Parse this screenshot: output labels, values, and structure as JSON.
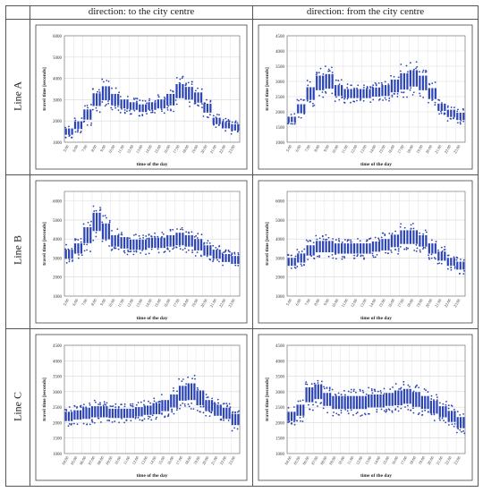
{
  "header": {
    "col1": "direction: to the city centre",
    "col2": "direction: from the city centre"
  },
  "rows": [
    "Line A",
    "Line B",
    "Line C"
  ],
  "chart_data": [
    {
      "type": "scatter",
      "line": "Line A",
      "direction": "to the city centre",
      "xlabel": "time of the day",
      "ylabel": "travel time [seconds]",
      "ylim": [
        1000,
        6000
      ],
      "yticks": [
        1000,
        2000,
        3000,
        4000,
        5000,
        6000
      ],
      "categories": [
        "5:00",
        "6:00",
        "7:00",
        "8:00",
        "9:00",
        "10:00",
        "11:00",
        "12:00",
        "13:00",
        "14:00",
        "15:00",
        "16:00",
        "17:00",
        "18:00",
        "19:00",
        "20:00",
        "21:00",
        "22:00",
        "23:00"
      ],
      "values": [
        1500,
        1800,
        2300,
        3000,
        3300,
        3000,
        2800,
        2700,
        2600,
        2700,
        2800,
        3000,
        3400,
        3300,
        3100,
        2600,
        2000,
        1800,
        1700
      ],
      "spread": [
        250,
        300,
        400,
        500,
        550,
        450,
        350,
        300,
        300,
        300,
        350,
        450,
        550,
        500,
        400,
        350,
        250,
        250,
        250
      ],
      "color": "#2a43b5"
    },
    {
      "type": "scatter",
      "line": "Line A",
      "direction": "from the city centre",
      "xlabel": "time of the day",
      "ylabel": "travel time [seconds]",
      "ylim": [
        1000,
        4500
      ],
      "yticks": [
        1000,
        1500,
        2000,
        2500,
        3000,
        3500,
        4000,
        4500
      ],
      "categories": [
        "5:00",
        "6:00",
        "7:00",
        "8:00",
        "9:00",
        "10:00",
        "11:00",
        "12:00",
        "13:00",
        "14:00",
        "15:00",
        "16:00",
        "17:00",
        "18:00",
        "19:00",
        "20:00",
        "21:00",
        "22:00",
        "23:00"
      ],
      "values": [
        1750,
        2100,
        2600,
        2950,
        3000,
        2700,
        2600,
        2600,
        2600,
        2650,
        2700,
        2850,
        3000,
        3100,
        2950,
        2600,
        2150,
        1950,
        1850
      ],
      "spread": [
        150,
        250,
        350,
        400,
        400,
        300,
        250,
        250,
        250,
        250,
        300,
        350,
        450,
        450,
        400,
        300,
        200,
        200,
        200
      ],
      "color": "#2a43b5"
    },
    {
      "type": "scatter",
      "line": "Line B",
      "direction": "to the city centre",
      "xlabel": "time of the day",
      "ylabel": "travel time [seconds]",
      "ylim": [
        1000,
        6500
      ],
      "yticks": [
        1000,
        2000,
        3000,
        4000,
        5000,
        6000
      ],
      "categories": [
        "5:00",
        "6:00",
        "7:00",
        "8:00",
        "9:00",
        "10:00",
        "11:00",
        "12:00",
        "13:00",
        "14:00",
        "15:00",
        "16:00",
        "17:00",
        "18:00",
        "19:00",
        "20:00",
        "21:00",
        "22:00",
        "23:00"
      ],
      "values": [
        3200,
        3500,
        4200,
        4900,
        4400,
        3900,
        3800,
        3700,
        3700,
        3800,
        3800,
        3900,
        4000,
        3900,
        3700,
        3400,
        3200,
        3000,
        2900
      ],
      "spread": [
        400,
        450,
        700,
        800,
        700,
        500,
        500,
        450,
        450,
        450,
        450,
        500,
        550,
        500,
        500,
        450,
        400,
        350,
        350
      ],
      "color": "#2a43b5"
    },
    {
      "type": "scatter",
      "line": "Line B",
      "direction": "from the city centre",
      "xlabel": "time of the day",
      "ylabel": "travel time [seconds]",
      "ylim": [
        1000,
        6500
      ],
      "yticks": [
        1000,
        2000,
        3000,
        4000,
        5000,
        6000
      ],
      "categories": [
        "5:00",
        "6:00",
        "7:00",
        "8:00",
        "9:00",
        "10:00",
        "11:00",
        "12:00",
        "13:00",
        "14:00",
        "15:00",
        "16:00",
        "17:00",
        "18:00",
        "19:00",
        "20:00",
        "21:00",
        "22:00",
        "23:00"
      ],
      "values": [
        2800,
        3000,
        3400,
        3600,
        3600,
        3500,
        3500,
        3500,
        3500,
        3600,
        3700,
        3900,
        4100,
        4100,
        3900,
        3500,
        3100,
        2800,
        2600
      ],
      "spread": [
        350,
        400,
        450,
        500,
        500,
        450,
        450,
        450,
        450,
        450,
        500,
        550,
        600,
        600,
        500,
        450,
        400,
        350,
        350
      ],
      "color": "#2a43b5"
    },
    {
      "type": "scatter",
      "line": "Line C",
      "direction": "to the city centre",
      "xlabel": "time of the day",
      "ylabel": "travel time [seconds]",
      "ylim": [
        1000,
        4500
      ],
      "yticks": [
        1000,
        1500,
        2000,
        2500,
        3000,
        3500,
        4000,
        4500
      ],
      "categories": [
        "04:00",
        "05:00",
        "06:00",
        "07:00",
        "08:00",
        "09:00",
        "10:00",
        "11:00",
        "12:00",
        "13:00",
        "14:00",
        "15:00",
        "16:00",
        "17:00",
        "18:00",
        "19:00",
        "20:00",
        "21:00",
        "22:00",
        "23:00"
      ],
      "values": [
        2200,
        2250,
        2300,
        2350,
        2350,
        2300,
        2300,
        2300,
        2350,
        2400,
        2450,
        2550,
        2700,
        2950,
        3000,
        2800,
        2550,
        2400,
        2300,
        2100
      ],
      "spread": [
        250,
        250,
        300,
        300,
        300,
        250,
        250,
        250,
        250,
        250,
        300,
        300,
        350,
        400,
        450,
        400,
        300,
        300,
        300,
        300
      ],
      "color": "#2a43b5"
    },
    {
      "type": "scatter",
      "line": "Line C",
      "direction": "from the city centre",
      "xlabel": "time of the day",
      "ylabel": "travel time [seconds]",
      "ylim": [
        1000,
        4500
      ],
      "yticks": [
        1000,
        1500,
        2000,
        2500,
        3000,
        3500,
        4000,
        4500
      ],
      "categories": [
        "04:00",
        "05:00",
        "06:00",
        "07:00",
        "08:00",
        "09:00",
        "10:00",
        "11:00",
        "12:00",
        "13:00",
        "14:00",
        "15:00",
        "16:00",
        "17:00",
        "18:00",
        "19:00",
        "20:00",
        "21:00",
        "22:00",
        "23:00"
      ],
      "values": [
        2200,
        2400,
        2900,
        3000,
        2750,
        2650,
        2650,
        2650,
        2650,
        2700,
        2700,
        2750,
        2800,
        2850,
        2750,
        2650,
        2500,
        2350,
        2200,
        2000
      ],
      "spread": [
        250,
        300,
        400,
        400,
        350,
        350,
        350,
        350,
        350,
        350,
        350,
        350,
        400,
        400,
        400,
        350,
        350,
        300,
        300,
        300
      ],
      "color": "#2a43b5"
    }
  ]
}
